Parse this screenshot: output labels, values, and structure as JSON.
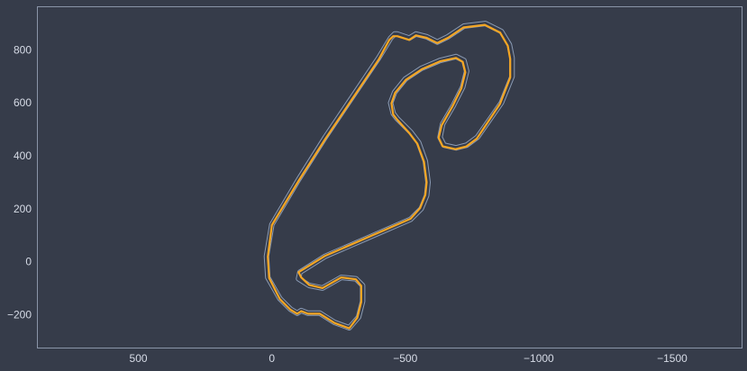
{
  "chart_data": {
    "type": "line",
    "title": "",
    "xlabel": "",
    "ylabel": "",
    "xlim": [
      880,
      -1760
    ],
    "ylim": [
      -325,
      965
    ],
    "x_inverted": true,
    "grid": false,
    "xticks": [
      500,
      0,
      -500,
      -1000,
      -1500
    ],
    "xtick_labels": [
      "500",
      "0",
      "−500",
      "−1000",
      "−1500"
    ],
    "yticks": [
      800,
      600,
      400,
      200,
      0,
      -200
    ],
    "ytick_labels": [
      "800",
      "600",
      "400",
      "200",
      "0",
      "−200"
    ],
    "colors": {
      "background": "#363c4a",
      "frame": "#8a95a8",
      "tick_text": "#d6dbe6",
      "track_outline": "#8a9bb5",
      "racing_line": "#f5a623"
    },
    "series": [
      {
        "role": "track-outline",
        "x": [
          -515,
          -470,
          -460,
          -445,
          -400,
          -200,
          -100,
          0,
          20,
          15,
          -30,
          -70,
          -95,
          -110,
          -135,
          -180,
          -235,
          -290,
          -325,
          -340,
          -340,
          -315,
          -260,
          -190,
          -140,
          -100,
          -105,
          -200,
          -360,
          -520,
          -560,
          -580,
          -585,
          -575,
          -550,
          -520,
          -490,
          -470,
          -455,
          -445,
          -460,
          -500,
          -560,
          -630,
          -690,
          -720,
          -730,
          -715,
          -680,
          -640,
          -630,
          -645,
          -690,
          -730,
          -770,
          -860,
          -900,
          -900,
          -890,
          -860,
          -800,
          -720,
          -660,
          -620,
          -580,
          -540,
          -515
        ],
        "y": [
          845,
          860,
          860,
          845,
          770,
          470,
          310,
          140,
          20,
          -60,
          -140,
          -180,
          -195,
          -185,
          -195,
          -195,
          -230,
          -250,
          -210,
          -150,
          -90,
          -65,
          -60,
          -100,
          -90,
          -65,
          -40,
          20,
          90,
          160,
          200,
          250,
          300,
          380,
          450,
          490,
          520,
          540,
          560,
          600,
          640,
          690,
          730,
          760,
          775,
          760,
          720,
          660,
          590,
          520,
          470,
          440,
          430,
          440,
          470,
          600,
          700,
          770,
          820,
          870,
          900,
          890,
          850,
          830,
          850,
          860,
          845
        ]
      },
      {
        "role": "racing-line",
        "x": [
          -515,
          -470,
          -455,
          -440,
          -400,
          -200,
          -100,
          0,
          15,
          10,
          -30,
          -70,
          -95,
          -110,
          -135,
          -180,
          -235,
          -290,
          -320,
          -335,
          -335,
          -315,
          -260,
          -190,
          -140,
          -110,
          -100,
          -200,
          -360,
          -520,
          -555,
          -575,
          -580,
          -570,
          -545,
          -515,
          -488,
          -470,
          -455,
          -448,
          -462,
          -502,
          -562,
          -630,
          -690,
          -715,
          -725,
          -710,
          -676,
          -636,
          -625,
          -640,
          -688,
          -728,
          -768,
          -855,
          -893,
          -893,
          -884,
          -855,
          -798,
          -718,
          -660,
          -620,
          -580,
          -540,
          -515
        ],
        "y": [
          838,
          852,
          852,
          838,
          763,
          463,
          305,
          138,
          18,
          -62,
          -142,
          -182,
          -197,
          -187,
          -197,
          -197,
          -232,
          -252,
          -212,
          -152,
          -92,
          -67,
          -60,
          -100,
          -88,
          -60,
          -40,
          22,
          92,
          162,
          202,
          252,
          300,
          378,
          446,
          486,
          516,
          536,
          556,
          598,
          638,
          687,
          727,
          757,
          770,
          755,
          715,
          655,
          585,
          515,
          468,
          436,
          425,
          435,
          465,
          596,
          696,
          766,
          816,
          866,
          895,
          885,
          846,
          826,
          846,
          855,
          838
        ]
      }
    ]
  }
}
